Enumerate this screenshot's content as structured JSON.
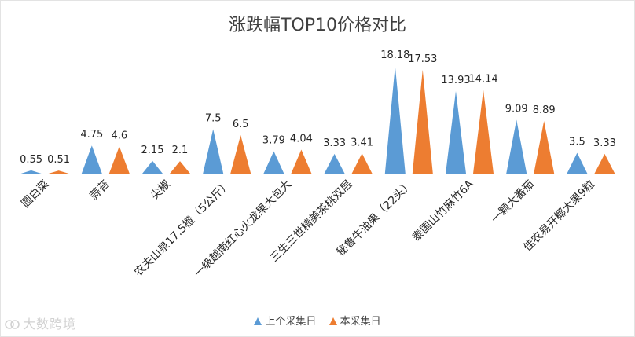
{
  "chart_data": {
    "type": "area",
    "title": "涨跌幅TOP10价格对比",
    "categories": [
      "圆白菜",
      "蒜苔",
      "尖椒",
      "农夫山泉17.5橙（5公斤）",
      "一级越南红心火龙果大包大",
      "三生三世精美茶桃双层",
      "秘鲁牛油果（22头）",
      "泰国山竹麻竹6A",
      "一颗大番茄",
      "佳农易开椰大果9粒"
    ],
    "series": [
      {
        "name": "上个采集日",
        "color": "#5b9bd5",
        "values": [
          0.55,
          4.75,
          2.15,
          7.5,
          3.79,
          3.33,
          18.18,
          13.93,
          9.09,
          3.5
        ]
      },
      {
        "name": "本采集日",
        "color": "#ed7d31",
        "values": [
          0.51,
          4.6,
          2.1,
          6.5,
          4.04,
          3.41,
          17.53,
          14.14,
          8.89,
          3.33
        ]
      }
    ],
    "value_labels": [
      [
        "0.55",
        "4.75",
        "2.15",
        "7.5",
        "3.79",
        "3.33",
        "18.18",
        "13.93",
        "9.09",
        "3.5"
      ],
      [
        "0.51",
        "4.6",
        "2.1",
        "6.5",
        "4.04",
        "3.41",
        "17.53",
        "14.14",
        "8.89",
        "3.33"
      ]
    ],
    "ylim": [
      0,
      18.18
    ],
    "grid": false,
    "legend_position": "bottom"
  },
  "watermark": "大数跨境"
}
